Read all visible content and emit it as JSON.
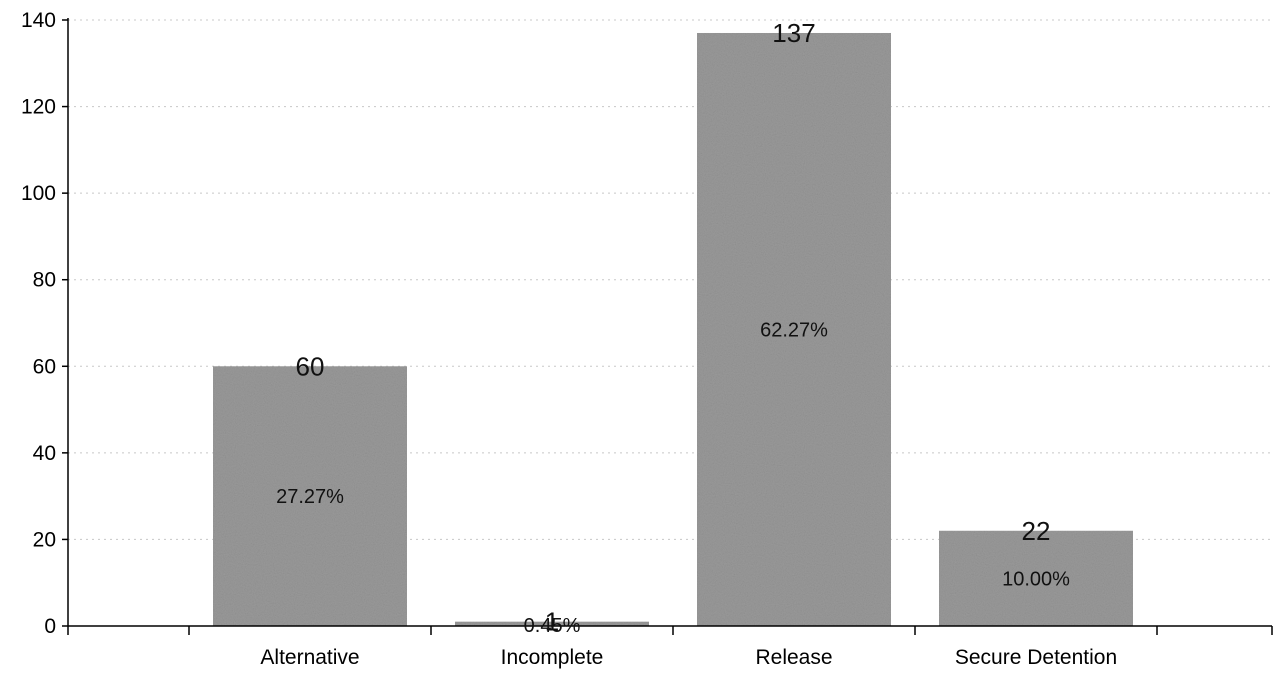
{
  "chart_data": {
    "type": "bar",
    "title": "",
    "xlabel": "",
    "ylabel": "",
    "categories": [
      "Alternative",
      "Incomplete",
      "Release",
      "Secure Detention"
    ],
    "values": [
      60,
      1,
      137,
      22
    ],
    "value_labels": [
      "60",
      "1",
      "137",
      "22"
    ],
    "percent_labels": [
      "27.27%",
      "0.45%",
      "62.27%",
      "10.00%"
    ],
    "ylim": [
      0,
      140
    ],
    "yticks": [
      0,
      20,
      40,
      60,
      80,
      100,
      120,
      140
    ],
    "grid": true,
    "legend": "none",
    "bar_color": "#9a9a9a"
  }
}
